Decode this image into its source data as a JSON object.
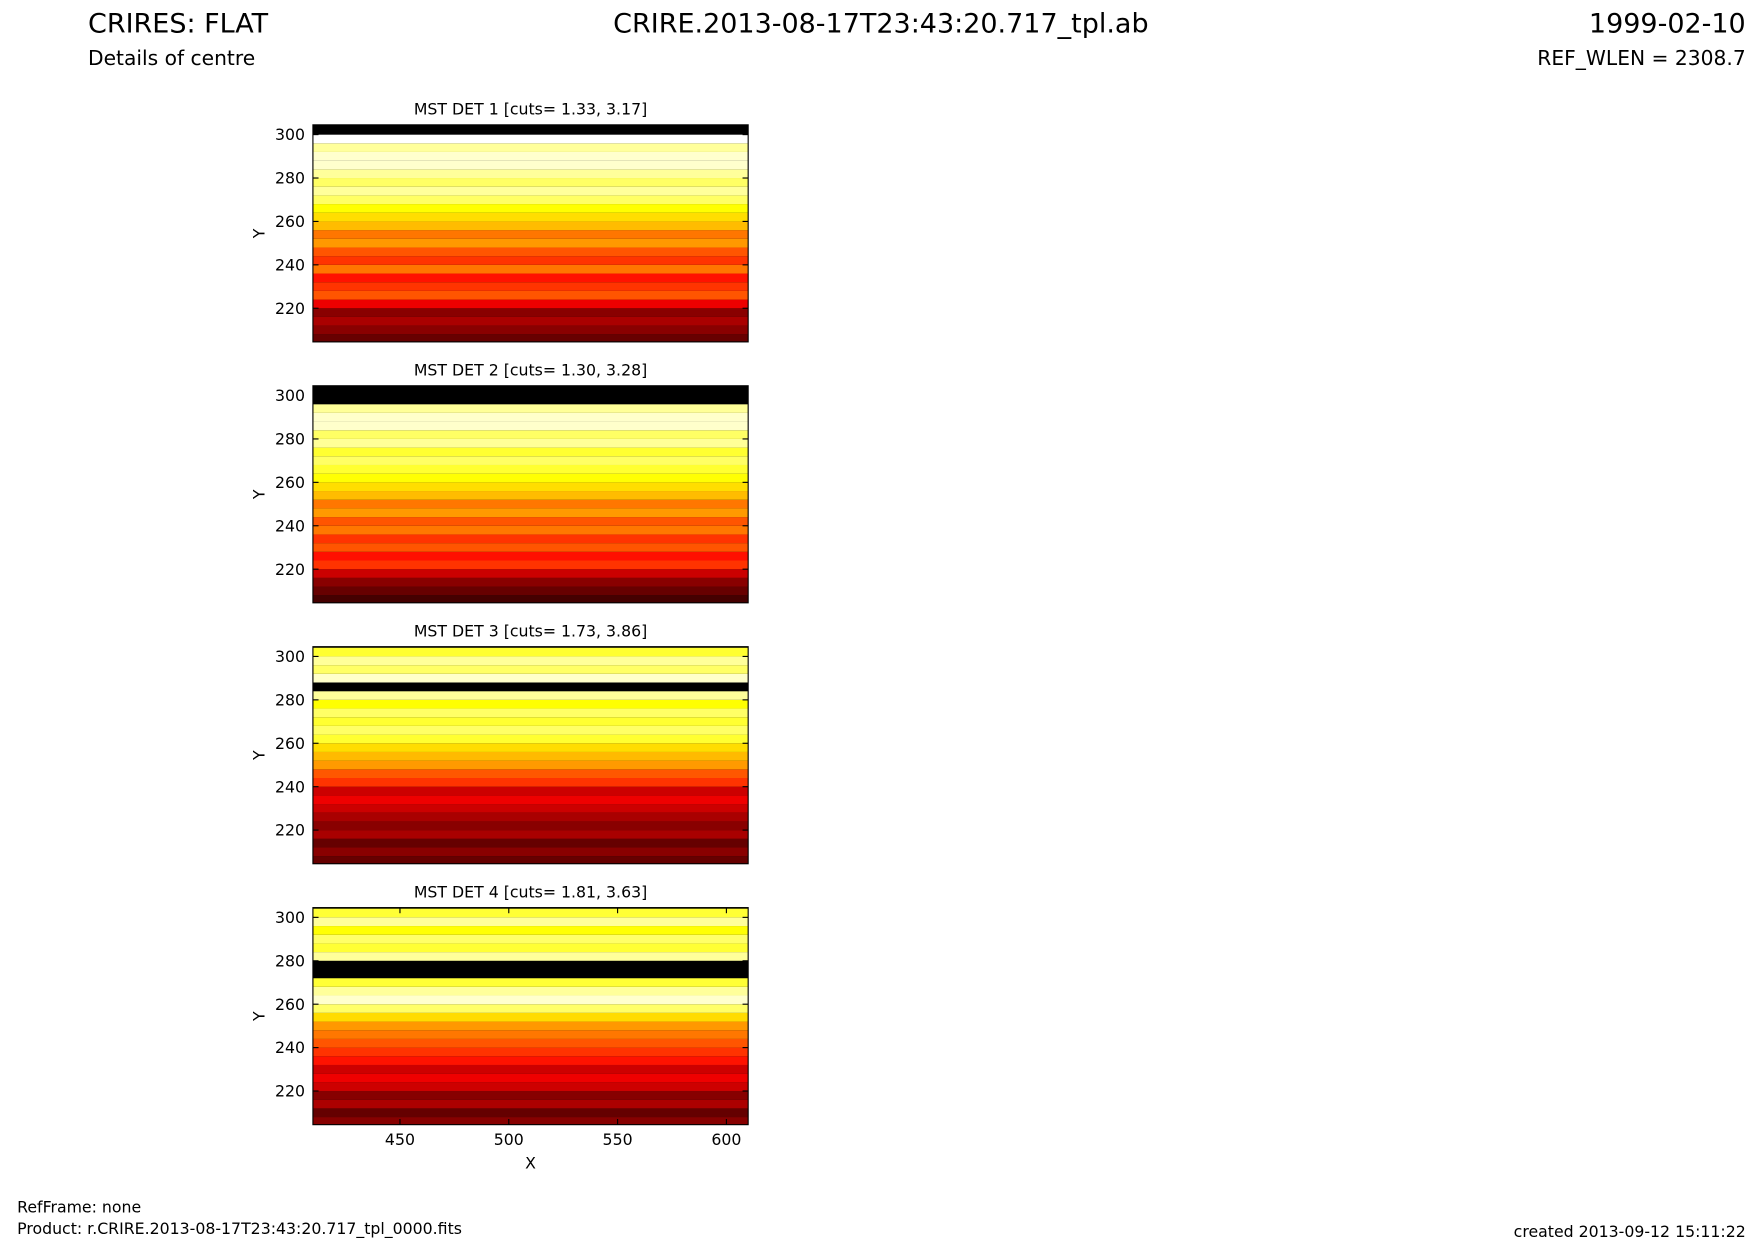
{
  "header": {
    "title": "CRIRES: FLAT",
    "subtitle": "Details of centre",
    "file": "CRIRE.2013-08-17T23:43:20.717_tpl.ab",
    "date": "1999-02-10",
    "ref_wlen": "REF_WLEN = 2308.7"
  },
  "footer": {
    "refframe": "RefFrame: none",
    "product": "Product: r.CRIRE.2013-08-17T23:43:20.717_tpl_0000.fits",
    "created": "created 2013-09-12 15:11:22"
  },
  "chart_data": [
    {
      "type": "heatmap",
      "title": "MST DET 1 [cuts= 1.33, 3.17]",
      "zlim": [
        1.33,
        3.17
      ],
      "colormap": "hot",
      "y": [
        206,
        210,
        214,
        218,
        222,
        226,
        230,
        234,
        238,
        242,
        246,
        250,
        254,
        258,
        262,
        266,
        270,
        274,
        278,
        282,
        286,
        290,
        294,
        298,
        302
      ],
      "values": [
        1.61,
        1.7,
        1.79,
        1.7,
        1.97,
        2.25,
        2.16,
        2.07,
        2.34,
        2.16,
        2.25,
        2.43,
        2.34,
        2.53,
        2.62,
        2.71,
        2.89,
        2.99,
        2.89,
        2.99,
        3.08,
        3.08,
        2.99,
        3.17,
        1.33
      ],
      "xlim": [
        410,
        610
      ],
      "ylim": [
        204.5,
        304.5
      ],
      "yticks": [
        220,
        240,
        260,
        280,
        300
      ],
      "y_label": "Y"
    },
    {
      "type": "heatmap",
      "title": "MST DET 2 [cuts= 1.30, 3.28]",
      "zlim": [
        1.3,
        3.28
      ],
      "colormap": "hot",
      "y": [
        206,
        210,
        214,
        218,
        222,
        226,
        230,
        234,
        238,
        242,
        246,
        250,
        254,
        258,
        262,
        266,
        270,
        274,
        278,
        282,
        286,
        290,
        294,
        298,
        302
      ],
      "values": [
        1.5,
        1.6,
        1.7,
        1.89,
        2.19,
        2.09,
        2.29,
        2.19,
        2.39,
        2.29,
        2.49,
        2.39,
        2.59,
        2.69,
        2.79,
        2.88,
        2.98,
        2.88,
        3.08,
        2.98,
        3.18,
        3.18,
        3.08,
        1.3,
        1.3
      ],
      "xlim": [
        410,
        610
      ],
      "ylim": [
        204.5,
        304.5
      ],
      "yticks": [
        220,
        240,
        260,
        280,
        300
      ],
      "y_label": "Y"
    },
    {
      "type": "heatmap",
      "title": "MST DET 3 [cuts= 1.73, 3.86]",
      "zlim": [
        1.73,
        3.86
      ],
      "colormap": "hot",
      "y": [
        206,
        210,
        214,
        218,
        222,
        226,
        230,
        234,
        238,
        242,
        246,
        250,
        254,
        258,
        262,
        266,
        270,
        274,
        278,
        282,
        286,
        290,
        294,
        298,
        302
      ],
      "values": [
        2.05,
        2.16,
        2.05,
        2.26,
        2.16,
        2.26,
        2.37,
        2.48,
        2.37,
        2.69,
        2.8,
        3.01,
        3.11,
        3.22,
        3.43,
        3.54,
        3.43,
        3.54,
        3.33,
        3.65,
        1.73,
        3.75,
        3.54,
        3.65,
        3.43
      ],
      "xlim": [
        410,
        610
      ],
      "ylim": [
        204.5,
        304.5
      ],
      "yticks": [
        220,
        240,
        260,
        280,
        300
      ],
      "y_label": "Y"
    },
    {
      "type": "heatmap",
      "title": "MST DET 4 [cuts= 1.81, 3.63]",
      "zlim": [
        1.81,
        3.63
      ],
      "colormap": "hot",
      "y": [
        206,
        210,
        214,
        218,
        222,
        226,
        230,
        234,
        238,
        242,
        246,
        250,
        254,
        258,
        262,
        266,
        270,
        274,
        278,
        282,
        286,
        290,
        294,
        298,
        302
      ],
      "values": [
        2.17,
        2.08,
        2.27,
        2.17,
        2.36,
        2.45,
        2.36,
        2.54,
        2.63,
        2.72,
        2.81,
        2.9,
        3.08,
        3.36,
        3.54,
        3.45,
        3.27,
        1.81,
        1.81,
        3.45,
        3.27,
        3.36,
        3.18,
        3.45,
        3.27
      ],
      "xlim": [
        410,
        610
      ],
      "ylim": [
        204.5,
        304.5
      ],
      "yticks": [
        220,
        240,
        260,
        280,
        300
      ],
      "xticks": [
        450,
        500,
        550,
        600
      ],
      "y_label": "Y",
      "x_label": "X"
    }
  ]
}
